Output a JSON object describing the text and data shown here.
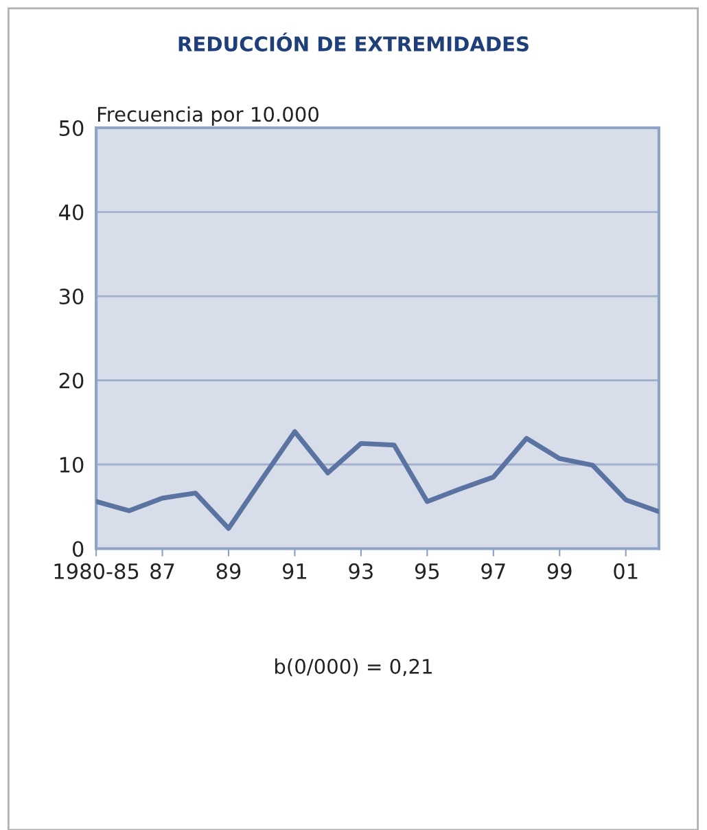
{
  "chart_data": {
    "type": "line",
    "title": "REDUCCIÓN DE EXTREMIDADES",
    "ylabel": "Frecuencia por 10.000",
    "categories": [
      "1980-85",
      null,
      "87",
      null,
      "89",
      null,
      "91",
      null,
      "93",
      null,
      "95",
      null,
      "97",
      null,
      "99",
      null,
      "01",
      null
    ],
    "series": [
      {
        "color": "#5a73a0",
        "values": [
          5.6,
          4.5,
          6.0,
          6.6,
          2.4,
          8.2,
          13.9,
          9.0,
          12.5,
          12.3,
          5.6,
          7.1,
          8.5,
          13.1,
          10.7,
          9.9,
          5.8,
          4.4
        ]
      }
    ],
    "ylim": [
      0,
      50
    ],
    "yticks": [
      0,
      10,
      20,
      30,
      40,
      50
    ],
    "grid": "y",
    "legend": false,
    "marker": "none",
    "line_style": "solid",
    "annotations": [
      "b(0/000) = 0,21"
    ]
  }
}
